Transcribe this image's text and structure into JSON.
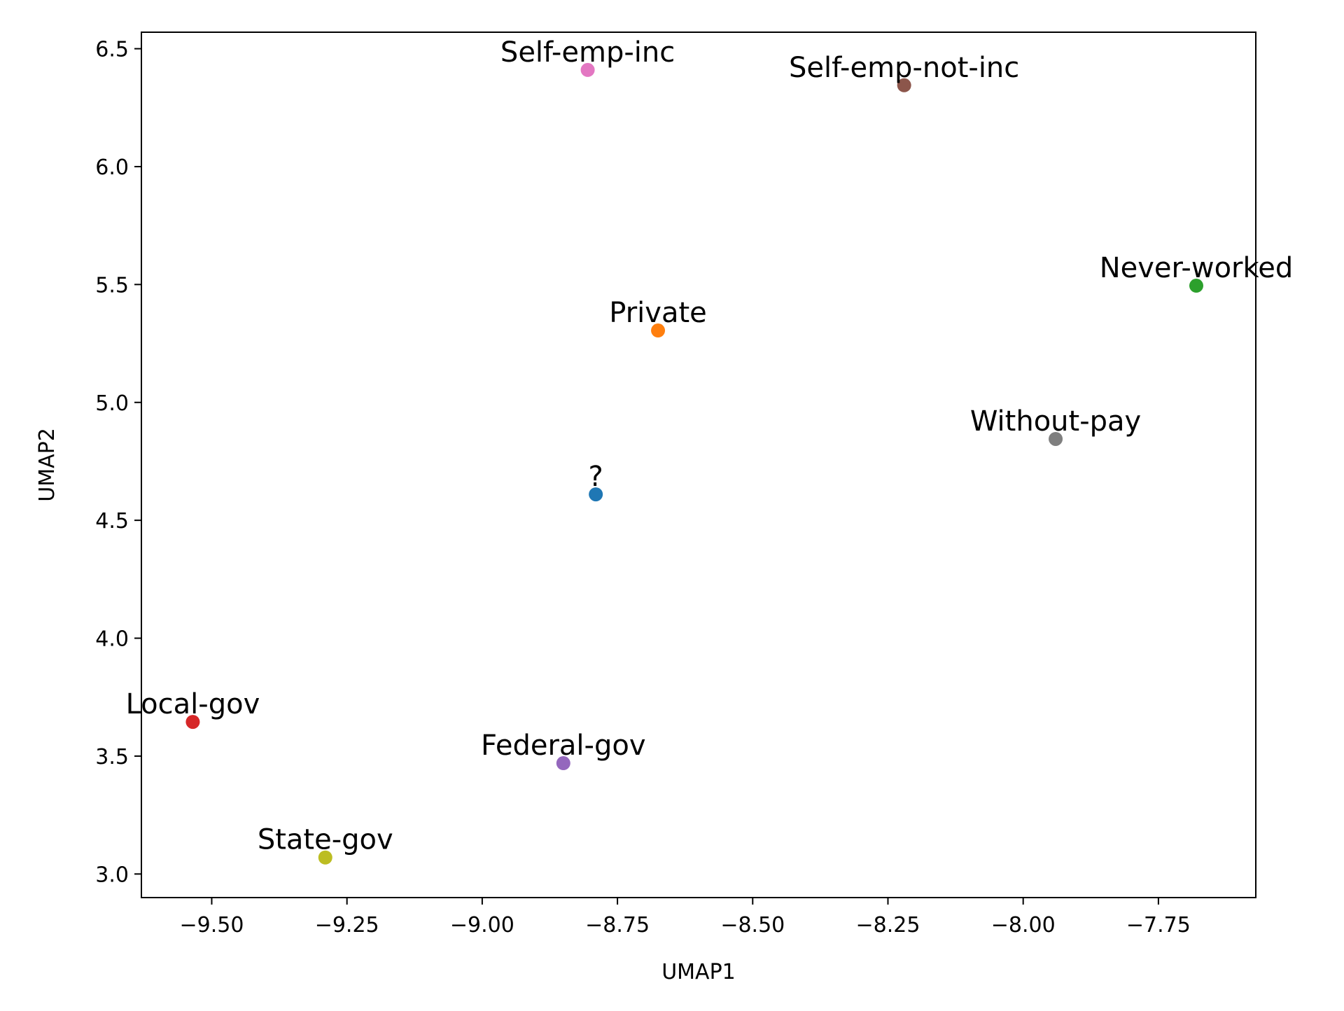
{
  "chart_data": {
    "type": "scatter",
    "title": "",
    "xlabel": "UMAP1",
    "ylabel": "UMAP2",
    "xlim": [
      -9.63,
      -7.57
    ],
    "ylim": [
      2.9,
      6.57
    ],
    "xticks": [
      -9.5,
      -9.25,
      -9.0,
      -8.75,
      -8.5,
      -8.25,
      -8.0,
      -7.75
    ],
    "xtick_labels": [
      "−9.50",
      "−9.25",
      "−9.00",
      "−8.75",
      "−8.50",
      "−8.25",
      "−8.00",
      "−7.75"
    ],
    "yticks": [
      3.0,
      3.5,
      4.0,
      4.5,
      5.0,
      5.5,
      6.0,
      6.5
    ],
    "ytick_labels": [
      "3.0",
      "3.5",
      "4.0",
      "4.5",
      "5.0",
      "5.5",
      "6.0",
      "6.5"
    ],
    "grid": false,
    "legend": "none",
    "points": [
      {
        "label": "?",
        "x": -8.79,
        "y": 4.61,
        "color": "#1f77b4"
      },
      {
        "label": "Private",
        "x": -8.675,
        "y": 5.305,
        "color": "#ff7f0e"
      },
      {
        "label": "Never-worked",
        "x": -7.68,
        "y": 5.495,
        "color": "#2ca02c"
      },
      {
        "label": "Local-gov",
        "x": -9.535,
        "y": 3.645,
        "color": "#d62728"
      },
      {
        "label": "Federal-gov",
        "x": -8.85,
        "y": 3.47,
        "color": "#9467bd"
      },
      {
        "label": "Self-emp-not-inc",
        "x": -8.22,
        "y": 6.345,
        "color": "#8c564b"
      },
      {
        "label": "Self-emp-inc",
        "x": -8.805,
        "y": 6.41,
        "color": "#e377c2"
      },
      {
        "label": "Without-pay",
        "x": -7.94,
        "y": 4.845,
        "color": "#7f7f7f"
      },
      {
        "label": "State-gov",
        "x": -9.29,
        "y": 3.07,
        "color": "#bcbd22"
      }
    ]
  }
}
